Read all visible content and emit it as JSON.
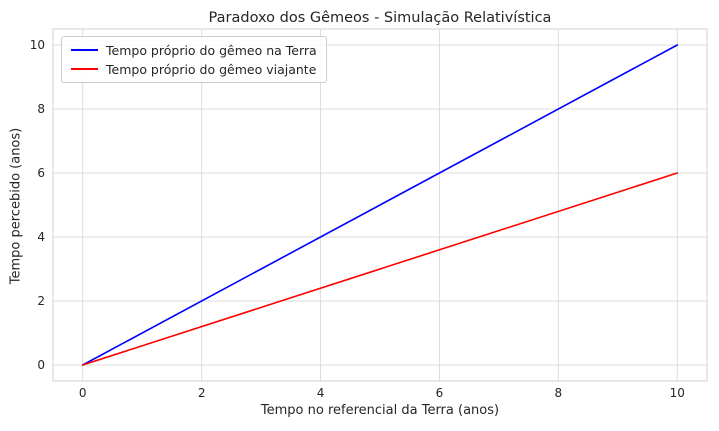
{
  "figure": {
    "background": "#ffffff",
    "text_color": "#262626",
    "grid_color": "#dddddd",
    "spine_color": "#d9d9d9"
  },
  "chart_data": {
    "type": "line",
    "title": "Paradoxo dos Gêmeos - Simulação Relativística",
    "xlabel": "Tempo no referencial da Terra (anos)",
    "ylabel": "Tempo percebido (anos)",
    "xlim": [
      -0.5,
      10.5
    ],
    "ylim": [
      -0.5,
      10.5
    ],
    "xticks": [
      0,
      2,
      4,
      6,
      8,
      10
    ],
    "yticks": [
      0,
      2,
      4,
      6,
      8,
      10
    ],
    "grid": true,
    "legend_position": "upper-left",
    "series": [
      {
        "name": "Tempo próprio do gêmeo na Terra",
        "color": "#0000ff",
        "x": [
          0,
          10
        ],
        "y": [
          0,
          10
        ]
      },
      {
        "name": "Tempo próprio do gêmeo viajante",
        "color": "#ff0000",
        "x": [
          0,
          10
        ],
        "y": [
          0,
          6
        ]
      }
    ]
  }
}
